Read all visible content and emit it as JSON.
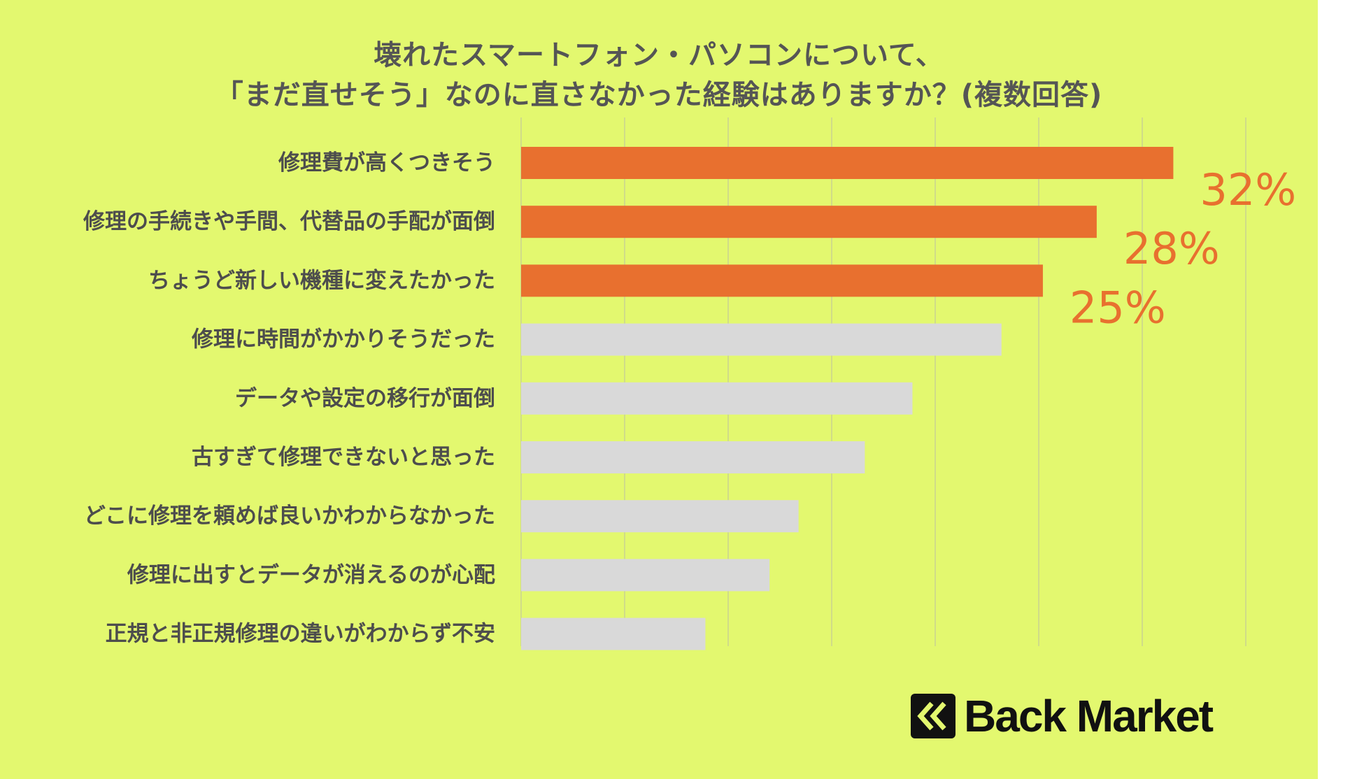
{
  "title": {
    "line1": "壊れたスマートフォン・パソコンについて、",
    "line2": "「まだ直せそう」なのに直さなかった経験はありますか？(複数回答)"
  },
  "chart_data": {
    "type": "bar",
    "orientation": "horizontal",
    "categories": [
      "修理費が高くつきそう",
      "修理の手続きや手間、代替品の手配が面倒",
      "ちょうど新しい機種に変えたかった",
      "修理に時間がかかりそうだった",
      "データや設定の移行が面倒",
      "古すぎて修理できないと思った",
      "どこに修理を頼めば良いかわからなかった",
      "修理に出すとデータが消えるのが心配",
      "正規と非正規修理の違いがわからず不安"
    ],
    "values": [
      31.5,
      27.8,
      25.2,
      23.2,
      18.9,
      16.6,
      13.4,
      12.0,
      8.9
    ],
    "value_labels": [
      "32%",
      "28%",
      "25%",
      "",
      "",
      "",
      "",
      "",
      ""
    ],
    "highlight_count": 3,
    "xlim": [
      0,
      35
    ],
    "gridlines": [
      0,
      5,
      10,
      15,
      20,
      25,
      30,
      35
    ],
    "grid": true,
    "colors": {
      "highlight": "#e8702f",
      "other": "#d9d9d9",
      "label_highlight": "#e8702f",
      "gridline": "#d0dc88",
      "background": "#e3f86f"
    }
  },
  "logo": {
    "text": "Back Market",
    "icon": "back-market-chevron-icon"
  }
}
